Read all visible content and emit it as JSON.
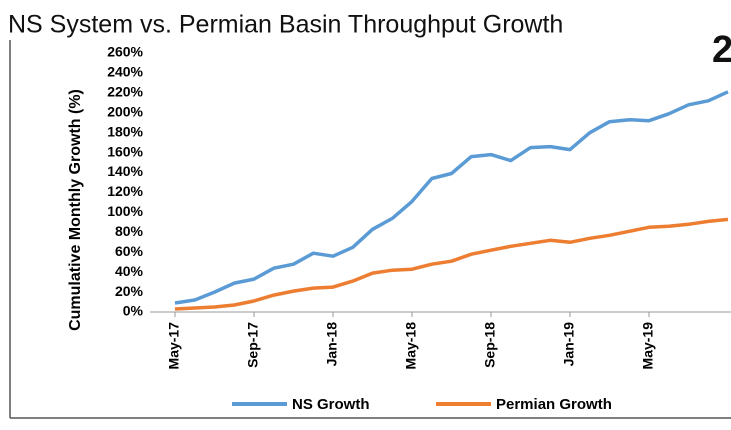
{
  "chart_data": {
    "type": "line",
    "title": "NS System vs. Permian Basin Throughput Growth",
    "annotation": "2",
    "y_label": "Cumulative Monthly Growth (%)",
    "categories": [
      "May-17",
      null,
      null,
      null,
      "Sep-17",
      null,
      null,
      null,
      "Jan-18",
      null,
      null,
      null,
      "May-18",
      null,
      null,
      null,
      "Sep-18",
      null,
      null,
      null,
      "Jan-19",
      null,
      null,
      null,
      "May-19",
      null,
      null,
      null,
      null
    ],
    "series": [
      {
        "name": "NS Growth",
        "color": "#5b9bd5",
        "values": [
          9,
          12,
          20,
          29,
          33,
          44,
          48,
          59,
          56,
          65,
          83,
          94,
          111,
          134,
          139,
          156,
          158,
          152,
          165,
          166,
          163,
          180,
          191,
          193,
          192,
          199,
          208,
          212,
          221
        ]
      },
      {
        "name": "Permian Growth",
        "color": "#ed7d31",
        "values": [
          3,
          4,
          5,
          7,
          11,
          17,
          21,
          24,
          25,
          31,
          39,
          42,
          43,
          48,
          51,
          58,
          62,
          66,
          69,
          72,
          70,
          74,
          77,
          81,
          85,
          86,
          88,
          91,
          93
        ]
      }
    ],
    "ylim": [
      0,
      260
    ],
    "yticks": [
      {
        "value": 0,
        "label": "0%"
      },
      {
        "value": 20,
        "label": "20%"
      },
      {
        "value": 40,
        "label": "40%"
      },
      {
        "value": 60,
        "label": "60%"
      },
      {
        "value": 80,
        "label": "80%"
      },
      {
        "value": 100,
        "label": "100%"
      },
      {
        "value": 120,
        "label": "120%"
      },
      {
        "value": 140,
        "label": "140%"
      },
      {
        "value": 160,
        "label": "160%"
      },
      {
        "value": 180,
        "label": "180%"
      },
      {
        "value": 200,
        "label": "200%"
      },
      {
        "value": 220,
        "label": "220%"
      },
      {
        "value": 240,
        "label": "240%"
      },
      {
        "value": 260,
        "label": "260%"
      }
    ],
    "grid": false,
    "legend": "bottom"
  }
}
